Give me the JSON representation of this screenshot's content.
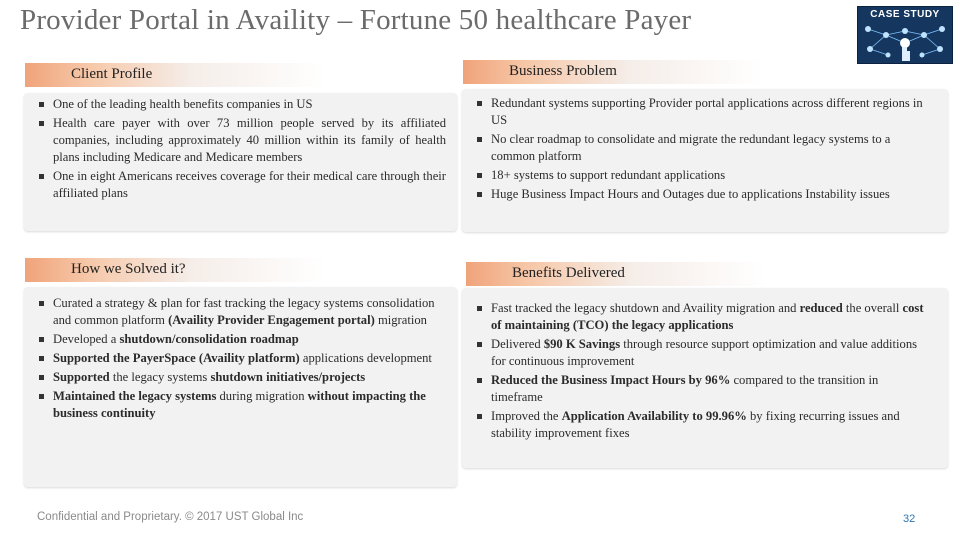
{
  "title": "Provider Portal in Availity – Fortune 50 healthcare Payer",
  "badge": {
    "text": "CASE STUDY",
    "icon": "network-touch-icon"
  },
  "sections": {
    "client_profile": {
      "header": "Client Profile",
      "items": [
        [
          {
            "t": "One of the leading health benefits companies in US"
          }
        ],
        [
          {
            "t": "Health care payer with over 73 million people served by its affiliated companies, including approximately 40 million within its family of health plans including Medicare and Medicare members"
          }
        ],
        [
          {
            "t": "One in eight Americans receives coverage for their medical care through their affiliated plans"
          }
        ]
      ]
    },
    "business_problem": {
      "header": "Business Problem",
      "items": [
        [
          {
            "t": "Redundant systems supporting Provider portal applications across different regions in US"
          }
        ],
        [
          {
            "t": "No clear roadmap to consolidate and migrate the redundant legacy systems to a common platform"
          }
        ],
        [
          {
            "t": "18+ systems to support redundant applications"
          }
        ],
        [
          {
            "t": "Huge Business Impact Hours and Outages  due to applications Instability issues"
          }
        ]
      ]
    },
    "how_solved": {
      "header": "How we Solved it?",
      "items": [
        [
          {
            "t": "Curated a strategy & plan for fast tracking the legacy systems consolidation and common platform "
          },
          {
            "t": "(Availity Provider Engagement portal)",
            "b": true
          },
          {
            "t": " migration"
          }
        ],
        [
          {
            "t": "Developed a "
          },
          {
            "t": "shutdown/consolidation roadmap",
            "b": true
          }
        ],
        [
          {
            "t": "Supported the PayerSpace (Availity platform)",
            "b": true
          },
          {
            "t": " applications development"
          }
        ],
        [
          {
            "t": "Supported",
            "b": true
          },
          {
            "t": " the legacy systems "
          },
          {
            "t": "shutdown initiatives/projects",
            "b": true
          }
        ],
        [
          {
            "t": "Maintained the legacy systems",
            "b": true
          },
          {
            "t": " during migration "
          },
          {
            "t": "without impacting the business continuity",
            "b": true
          }
        ]
      ]
    },
    "benefits": {
      "header": "Benefits Delivered",
      "items": [
        [
          {
            "t": "Fast tracked the legacy shutdown and Availity migration and "
          },
          {
            "t": "reduced",
            "b": true
          },
          {
            "t": " the overall "
          },
          {
            "t": "cost of maintaining (TCO) the legacy applications",
            "b": true
          }
        ],
        [
          {
            "t": "Delivered "
          },
          {
            "t": "$90 K Savings",
            "b": true
          },
          {
            "t": " through resource support optimization and value additions for continuous improvement"
          }
        ],
        [
          {
            "t": "Reduced the Business Impact Hours by 96%",
            "b": true
          },
          {
            "t": " compared to the transition in timeframe"
          }
        ],
        [
          {
            "t": "Improved the "
          },
          {
            "t": "Application Availability to 99.96%",
            "b": true
          },
          {
            "t": " by fixing recurring issues and stability improvement fixes"
          }
        ]
      ]
    }
  },
  "footer": "Confidential and Proprietary. © 2017 UST Global Inc",
  "page_number": "32",
  "colors": {
    "header_accent": "#f0a37a",
    "panel_bg": "#f2f2f2",
    "title": "#6b6b6b",
    "page_number": "#2e75b6",
    "badge_bg": "#15375f"
  }
}
